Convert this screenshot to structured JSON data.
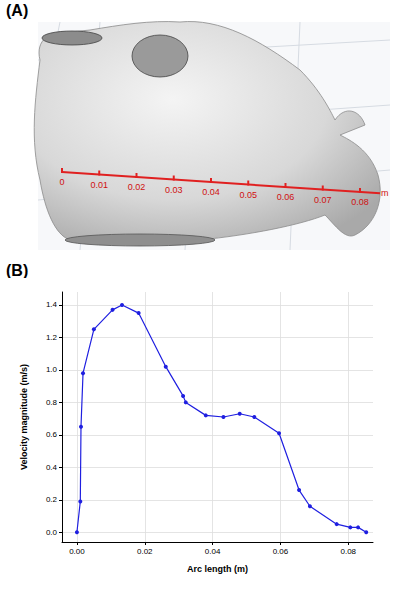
{
  "panel_a": {
    "label": "(A)",
    "ruler_ticks": [
      0,
      0.01,
      0.02,
      0.03,
      0.04,
      0.05,
      0.06,
      0.07,
      0.08
    ],
    "ruler_unit": "m"
  },
  "panel_b_label": "(B)",
  "chart_data": {
    "type": "line",
    "x_label": "Arc length (m)",
    "y_label": "Velocity magnitude (m/s)",
    "x": [
      0.0,
      0.001,
      0.0012,
      0.0018,
      0.005,
      0.0105,
      0.0133,
      0.0182,
      0.0262,
      0.0313,
      0.0321,
      0.038,
      0.0432,
      0.048,
      0.0523,
      0.0596,
      0.0655,
      0.0687,
      0.0766,
      0.0806,
      0.0829,
      0.0853
    ],
    "values": [
      0.0,
      0.19,
      0.65,
      0.98,
      1.25,
      1.37,
      1.4,
      1.35,
      1.02,
      0.84,
      0.8,
      0.72,
      0.71,
      0.73,
      0.71,
      0.61,
      0.26,
      0.16,
      0.05,
      0.03,
      0.03,
      0.0
    ],
    "color": "#1f1fe0",
    "marker": "circle",
    "xlim": [
      -0.0044,
      0.0873
    ],
    "xticks": [
      {
        "value": 0,
        "label": "0.00"
      },
      0.02,
      0.04,
      0.06,
      0.08
    ],
    "ylim": [
      -0.06,
      1.48
    ],
    "yticks": [
      {
        "value": 0,
        "label": "0.0"
      },
      0.2,
      0.4,
      0.6,
      0.8,
      {
        "value": 1,
        "label": "1.0"
      },
      1.2,
      1.4
    ],
    "grid": true
  }
}
